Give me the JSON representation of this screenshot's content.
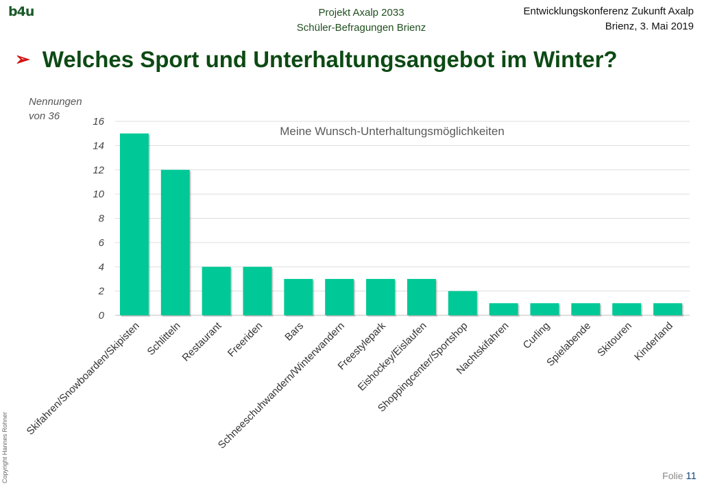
{
  "header": {
    "logo_text": "b4u",
    "project_line1": "Projekt Axalp 2033",
    "project_line2": "Schüler-Befragungen Brienz",
    "conference_line1": "Entwicklungskonferenz Zukunft Axalp",
    "conference_line2": "Brienz, 3. Mai 2019"
  },
  "slide": {
    "bullet": "➢",
    "title": "Welches Sport und Unterhaltungsangebot im Winter?",
    "unit_line1": "Nennungen",
    "unit_line2": "von 36"
  },
  "footer": {
    "copyright": "Copyright Hannes Rohner",
    "folio_label": "Folie",
    "folio_number": "11"
  },
  "colors": {
    "bar": "#00c896",
    "title": "#0d4a14",
    "bullet": "#d31111"
  },
  "chart_data": {
    "type": "bar",
    "title": "Meine Wunsch-Unterhaltungsmöglichkeiten",
    "ylabel": "",
    "xlabel": "",
    "ylim": [
      0,
      16
    ],
    "yticks": [
      0,
      2,
      4,
      6,
      8,
      10,
      12,
      14,
      16
    ],
    "grid": true,
    "categories": [
      "Skifahren/Snowboarden/Skipisten",
      "Schlitteln",
      "Restaurant",
      "Freeriden",
      "Bars",
      "Schneeschuhwandern/Winterwandern",
      "Freestylepark",
      "Eishockey/Eislaufen",
      "Shoppingcenter/Sportshop",
      "Nachtskifahren",
      "Curling",
      "Spielabende",
      "Skitouren",
      "Kinderland"
    ],
    "values": [
      15,
      12,
      4,
      4,
      3,
      3,
      3,
      3,
      2,
      1,
      1,
      1,
      1,
      1
    ]
  }
}
